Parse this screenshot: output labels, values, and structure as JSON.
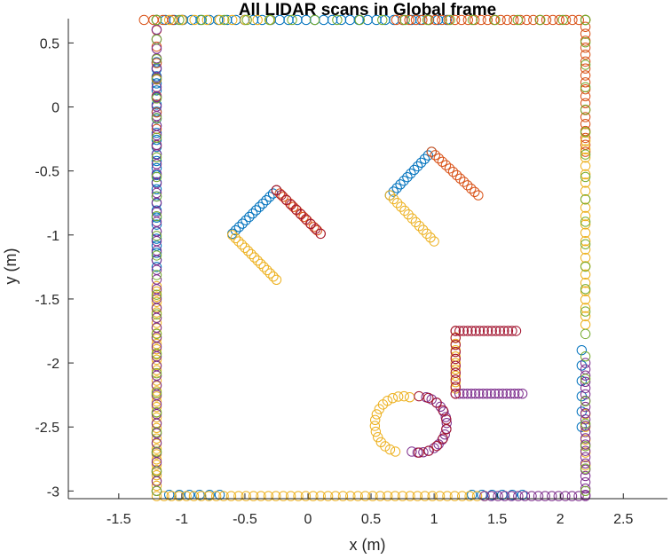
{
  "chart_data": {
    "type": "scatter",
    "title": "All LIDAR scans in Global frame",
    "xlabel": "x (m)",
    "ylabel": "y (m)",
    "xlim": [
      -1.9,
      2.85
    ],
    "ylim": [
      -3.06,
      0.69
    ],
    "xticks": [
      -1.5,
      -1,
      -0.5,
      0,
      0.5,
      1,
      1.5,
      2,
      2.5
    ],
    "yticks": [
      0.5,
      0,
      -0.5,
      -1,
      -1.5,
      -2,
      -2.5,
      -3
    ],
    "xtick_labels": [
      "-1.5",
      "-1",
      "-0.5",
      "0",
      "0.5",
      "1",
      "1.5",
      "2",
      "2.5"
    ],
    "ytick_labels": [
      "0.5",
      "0",
      "-0.5",
      "-1",
      "-1.5",
      "-2",
      "-2.5",
      "-3"
    ],
    "grid": false,
    "legend": "none",
    "marker": "open-circle",
    "series": [
      {
        "color": "#0072BD",
        "segments": [
          {
            "from": [
              -1.2,
              0.35
            ],
            "to": [
              -1.2,
              -1.25
            ],
            "n": 30
          },
          {
            "from": [
              -1.2,
              0.68
            ],
            "to": [
              1.1,
              0.68
            ],
            "n": 34
          },
          {
            "from": [
              -0.6,
              -0.99
            ],
            "to": [
              -0.25,
              -0.65
            ],
            "n": 14
          },
          {
            "from": [
              0.65,
              -0.69
            ],
            "to": [
              0.98,
              -0.35
            ],
            "n": 13
          },
          {
            "from": [
              2.17,
              -1.9
            ],
            "to": [
              2.17,
              -2.5
            ],
            "n": 6
          },
          {
            "from": [
              -1.1,
              -3.03
            ],
            "to": [
              -0.7,
              -3.03
            ],
            "n": 6
          },
          {
            "from": [
              1.3,
              -3.03
            ],
            "to": [
              1.7,
              -3.03
            ],
            "n": 6
          }
        ]
      },
      {
        "color": "#D95319",
        "segments": [
          {
            "from": [
              0.7,
              0.68
            ],
            "to": [
              2.2,
              0.68
            ],
            "n": 30
          },
          {
            "from": [
              2.2,
              0.68
            ],
            "to": [
              2.2,
              -0.35
            ],
            "n": 20
          },
          {
            "from": [
              0.98,
              -0.35
            ],
            "to": [
              1.35,
              -0.69
            ],
            "n": 14
          },
          {
            "from": [
              -0.25,
              -0.65
            ],
            "to": [
              0.1,
              -0.99
            ],
            "n": 14
          },
          {
            "from": [
              -1.3,
              0.68
            ],
            "to": [
              -1.0,
              0.68
            ],
            "n": 5
          },
          {
            "from": [
              -1.2,
              0.6
            ],
            "to": [
              -1.2,
              -0.3
            ],
            "n": 8
          }
        ]
      },
      {
        "color": "#EDB120",
        "segments": [
          {
            "from": [
              -1.2,
              -1.4
            ],
            "to": [
              -1.2,
              -3.0
            ],
            "n": 40
          },
          {
            "from": [
              -1.2,
              -3.04
            ],
            "to": [
              1.4,
              -3.04
            ],
            "n": 45
          },
          {
            "from": [
              -0.6,
              -1.0
            ],
            "to": [
              -0.25,
              -1.35
            ],
            "n": 15
          },
          {
            "from": [
              0.65,
              -0.69
            ],
            "to": [
              1.0,
              -1.05
            ],
            "n": 13
          },
          {
            "from": [
              1.17,
              -1.75
            ],
            "to": [
              1.17,
              -2.2
            ],
            "n": 10
          },
          {
            "from": [
              2.2,
              -0.2
            ],
            "to": [
              2.2,
              -1.7
            ],
            "n": 24
          },
          {
            "from": [
              2.2,
              -2.4
            ],
            "to": [
              2.2,
              -2.8
            ],
            "n": 5
          },
          {
            "from": [
              -1.2,
              0.68
            ],
            "to": [
              -0.3,
              0.68
            ],
            "n": 10
          }
        ],
        "arcs": [
          {
            "center": [
              0.75,
              -2.48
            ],
            "radius": 0.22,
            "start_deg": 75,
            "end_deg": 255,
            "n": 16
          }
        ]
      },
      {
        "color": "#7E2F8E",
        "segments": [
          {
            "from": [
              1.17,
              -2.24
            ],
            "to": [
              1.7,
              -2.24
            ],
            "n": 18
          },
          {
            "from": [
              2.2,
              -2.0
            ],
            "to": [
              2.2,
              -3.03
            ],
            "n": 22
          },
          {
            "from": [
              1.4,
              -3.04
            ],
            "to": [
              2.2,
              -3.04
            ],
            "n": 16
          },
          {
            "from": [
              -1.2,
              0.68
            ],
            "to": [
              -1.2,
              -3.0
            ],
            "n": 50
          }
        ],
        "arcs": [
          {
            "center": [
              0.88,
              -2.48
            ],
            "radius": 0.22,
            "start_deg": -105,
            "end_deg": 75,
            "n": 16
          }
        ]
      },
      {
        "color": "#A2142F",
        "segments": [
          {
            "from": [
              -0.25,
              -0.65
            ],
            "to": [
              0.1,
              -0.99
            ],
            "n": 10
          },
          {
            "from": [
              1.17,
              -1.75
            ],
            "to": [
              1.65,
              -1.75
            ],
            "n": 16
          },
          {
            "from": [
              1.17,
              -1.75
            ],
            "to": [
              1.17,
              -2.24
            ],
            "n": 10
          }
        ],
        "arcs": [
          {
            "center": [
              0.88,
              -2.48
            ],
            "radius": 0.22,
            "start_deg": -90,
            "end_deg": 90,
            "n": 10
          }
        ]
      },
      {
        "color": "#77AC30",
        "segments": [
          {
            "from": [
              -1.2,
              0.68
            ],
            "to": [
              -1.2,
              -3.0
            ],
            "n": 25
          },
          {
            "from": [
              2.2,
              0.68
            ],
            "to": [
              2.2,
              -3.0
            ],
            "n": 22
          },
          {
            "from": [
              -1.2,
              0.68
            ],
            "to": [
              2.2,
              0.68
            ],
            "n": 20
          }
        ]
      }
    ]
  }
}
